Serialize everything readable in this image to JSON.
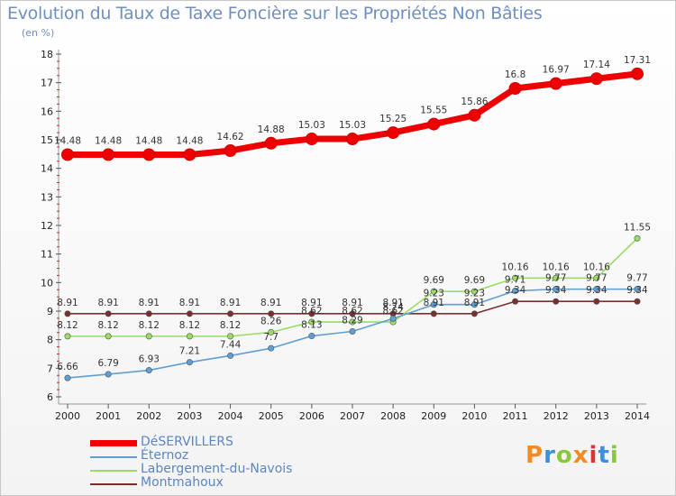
{
  "title": "Evolution du Taux de Taxe Foncière sur les Propriétés Non Bâties",
  "unit_label": "(en %)",
  "logo": {
    "text": "Proxiti",
    "colors": [
      "#f28b24",
      "#3f8fd6",
      "#8cc63f",
      "#f28b24",
      "#d6363a",
      "#3f8fd6",
      "#8cc63f"
    ]
  },
  "chart_data": {
    "type": "line",
    "title": "Evolution du Taux de Taxe Foncière sur les Propriétés Non Bâties",
    "ylabel": "(en %)",
    "xlabel": "",
    "ylim": [
      6,
      18
    ],
    "yticks": [
      6,
      7,
      8,
      9,
      10,
      11,
      12,
      13,
      14,
      15,
      16,
      17,
      18
    ],
    "categories": [
      "2000",
      "2001",
      "2002",
      "2003",
      "2004",
      "2005",
      "2006",
      "2007",
      "2008",
      "2009",
      "2010",
      "2011",
      "2012",
      "2013",
      "2014"
    ],
    "series": [
      {
        "name": "DéSERVILLERS",
        "color": "#ee0000",
        "values": [
          14.48,
          14.48,
          14.48,
          14.48,
          14.62,
          14.88,
          15.03,
          15.03,
          15.25,
          15.55,
          15.86,
          16.8,
          16.97,
          17.14,
          17.31
        ],
        "labels": [
          "14.48",
          "14.48",
          "14.48",
          "14.48",
          "14.62",
          "14.88",
          "15.03",
          "15.03",
          "15.25",
          "15.55",
          "15.86",
          "16.8",
          "16.97",
          "17.14",
          "17.31"
        ]
      },
      {
        "name": "Éternoz",
        "color": "#5f9fd3",
        "values": [
          6.66,
          6.79,
          6.93,
          7.21,
          7.44,
          7.7,
          8.13,
          8.29,
          8.74,
          9.23,
          9.23,
          9.71,
          9.77,
          9.77,
          9.77
        ],
        "labels": [
          "6.66",
          "6.79",
          "6.93",
          "7.21",
          "7.44",
          "7.7",
          "8.13",
          "8.29",
          "8.74",
          "9.23",
          "9.23",
          "9.71",
          "9.77",
          "9.77",
          "9.77"
        ]
      },
      {
        "name": "Labergement-du-Navois",
        "color": "#99dd66",
        "values": [
          8.12,
          8.12,
          8.12,
          8.12,
          8.12,
          8.26,
          8.62,
          8.62,
          8.62,
          9.69,
          9.69,
          10.16,
          10.16,
          10.16,
          11.55
        ],
        "labels": [
          "8.12",
          "8.12",
          "8.12",
          "8.12",
          "8.12",
          "8.26",
          "8.62",
          "8.62",
          "8.62",
          "9.69",
          "9.69",
          "10.16",
          "10.16",
          "10.16",
          "11.55"
        ]
      },
      {
        "name": "Montmahoux",
        "color": "#7a2f2f",
        "values": [
          8.91,
          8.91,
          8.91,
          8.91,
          8.91,
          8.91,
          8.91,
          8.91,
          8.91,
          8.91,
          8.91,
          9.34,
          9.34,
          9.34,
          9.34
        ],
        "labels": [
          "8.91",
          "8.91",
          "8.91",
          "8.91",
          "8.91",
          "8.91",
          "8.91",
          "8.91",
          "8.91",
          "8.91",
          "8.91",
          "9.34",
          "9.34",
          "9.34",
          "9.34"
        ]
      }
    ],
    "grid": false,
    "legend": "bottom-left"
  }
}
